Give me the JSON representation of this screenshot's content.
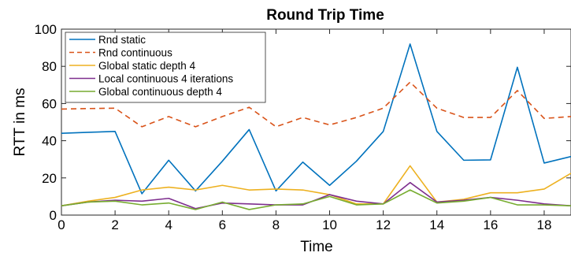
{
  "chart_data": {
    "type": "line",
    "title": "Round Trip Time",
    "xlabel": "Time",
    "ylabel": "RTT in ms",
    "xlim": [
      0,
      19
    ],
    "ylim": [
      0,
      100
    ],
    "x_ticks": [
      0,
      2,
      4,
      6,
      8,
      10,
      12,
      14,
      16,
      18
    ],
    "y_ticks": [
      0,
      20,
      40,
      60,
      80,
      100
    ],
    "grid": false,
    "legend_position": "top-left",
    "x": [
      0,
      1,
      2,
      3,
      4,
      5,
      6,
      7,
      8,
      9,
      10,
      11,
      12,
      13,
      14,
      15,
      16,
      17,
      18,
      19
    ],
    "series": [
      {
        "name": "Rnd static",
        "color": "#0072bd",
        "style": "solid",
        "values": [
          44,
          44.5,
          45,
          11.5,
          29.5,
          13,
          29,
          46,
          13,
          28.5,
          16,
          29,
          45,
          92,
          45,
          29.5,
          29.7,
          79.5,
          28,
          31.5
        ]
      },
      {
        "name": "Rnd continuous",
        "color": "#d95319",
        "style": "dashed",
        "values": [
          57,
          57.3,
          57.5,
          47.5,
          53,
          47.5,
          53,
          58,
          47.5,
          52.5,
          48.5,
          52.5,
          57.5,
          71.5,
          57.5,
          52.5,
          52.5,
          67,
          52,
          53
        ]
      },
      {
        "name": "Global static depth 4",
        "color": "#edb120",
        "style": "solid",
        "values": [
          5,
          7.5,
          9.5,
          13.5,
          15,
          13.5,
          16,
          13.5,
          14,
          13.5,
          11,
          6,
          6,
          26.5,
          7,
          8.5,
          12,
          12,
          14,
          22.5
        ]
      },
      {
        "name": "Local continuous 4 iterations",
        "color": "#7e2f8e",
        "style": "solid",
        "values": [
          5,
          7,
          8,
          7.5,
          9,
          3.5,
          6.5,
          6,
          5.5,
          5.5,
          11,
          7.5,
          6,
          17.5,
          7,
          8,
          9.5,
          8,
          6,
          5
        ]
      },
      {
        "name": "Global continuous depth 4",
        "color": "#77ac30",
        "style": "solid",
        "values": [
          5,
          7,
          7.5,
          5.5,
          6.5,
          3,
          7,
          3,
          5.5,
          6,
          10,
          5.5,
          6,
          13.5,
          6.5,
          7.5,
          9.5,
          5.5,
          5.5,
          5
        ]
      }
    ]
  }
}
